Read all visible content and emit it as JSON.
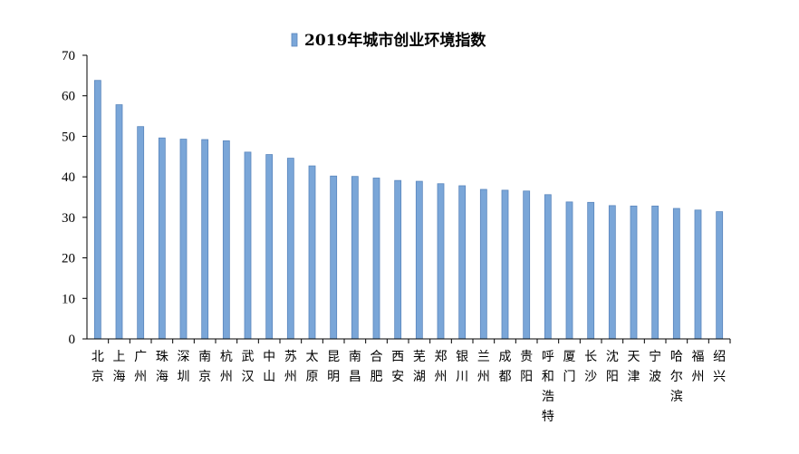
{
  "chart_data": {
    "type": "bar",
    "title": "2019年城市创业环境指数",
    "legend": {
      "position": "top",
      "series_name": "2019年城市创业环境指数"
    },
    "xlabel": "",
    "ylabel": "",
    "ylim": [
      0,
      70
    ],
    "yticks": [
      0,
      10,
      20,
      30,
      40,
      50,
      60,
      70
    ],
    "grid": false,
    "colors": {
      "bar": "#7aa6d8",
      "bar_edge": "#5a86bd",
      "axis": "#000000"
    },
    "categories": [
      "北京",
      "上海",
      "广州",
      "珠海",
      "深圳",
      "南京",
      "杭州",
      "武汉",
      "中山",
      "苏州",
      "太原",
      "昆明",
      "南昌",
      "合肥",
      "西安",
      "芜湖",
      "郑州",
      "银川",
      "兰州",
      "成都",
      "贵阳",
      "呼和浩特",
      "厦门",
      "长沙",
      "沈阳",
      "天津",
      "宁波",
      "哈尔滨",
      "福州",
      "绍兴"
    ],
    "values": [
      63.8,
      57.8,
      52.4,
      49.6,
      49.3,
      49.2,
      48.9,
      46.1,
      45.5,
      44.6,
      42.7,
      40.2,
      40.1,
      39.7,
      39.1,
      38.9,
      38.3,
      37.8,
      36.9,
      36.7,
      36.5,
      35.6,
      33.8,
      33.7,
      32.9,
      32.8,
      32.8,
      32.2,
      31.8,
      31.4
    ]
  }
}
